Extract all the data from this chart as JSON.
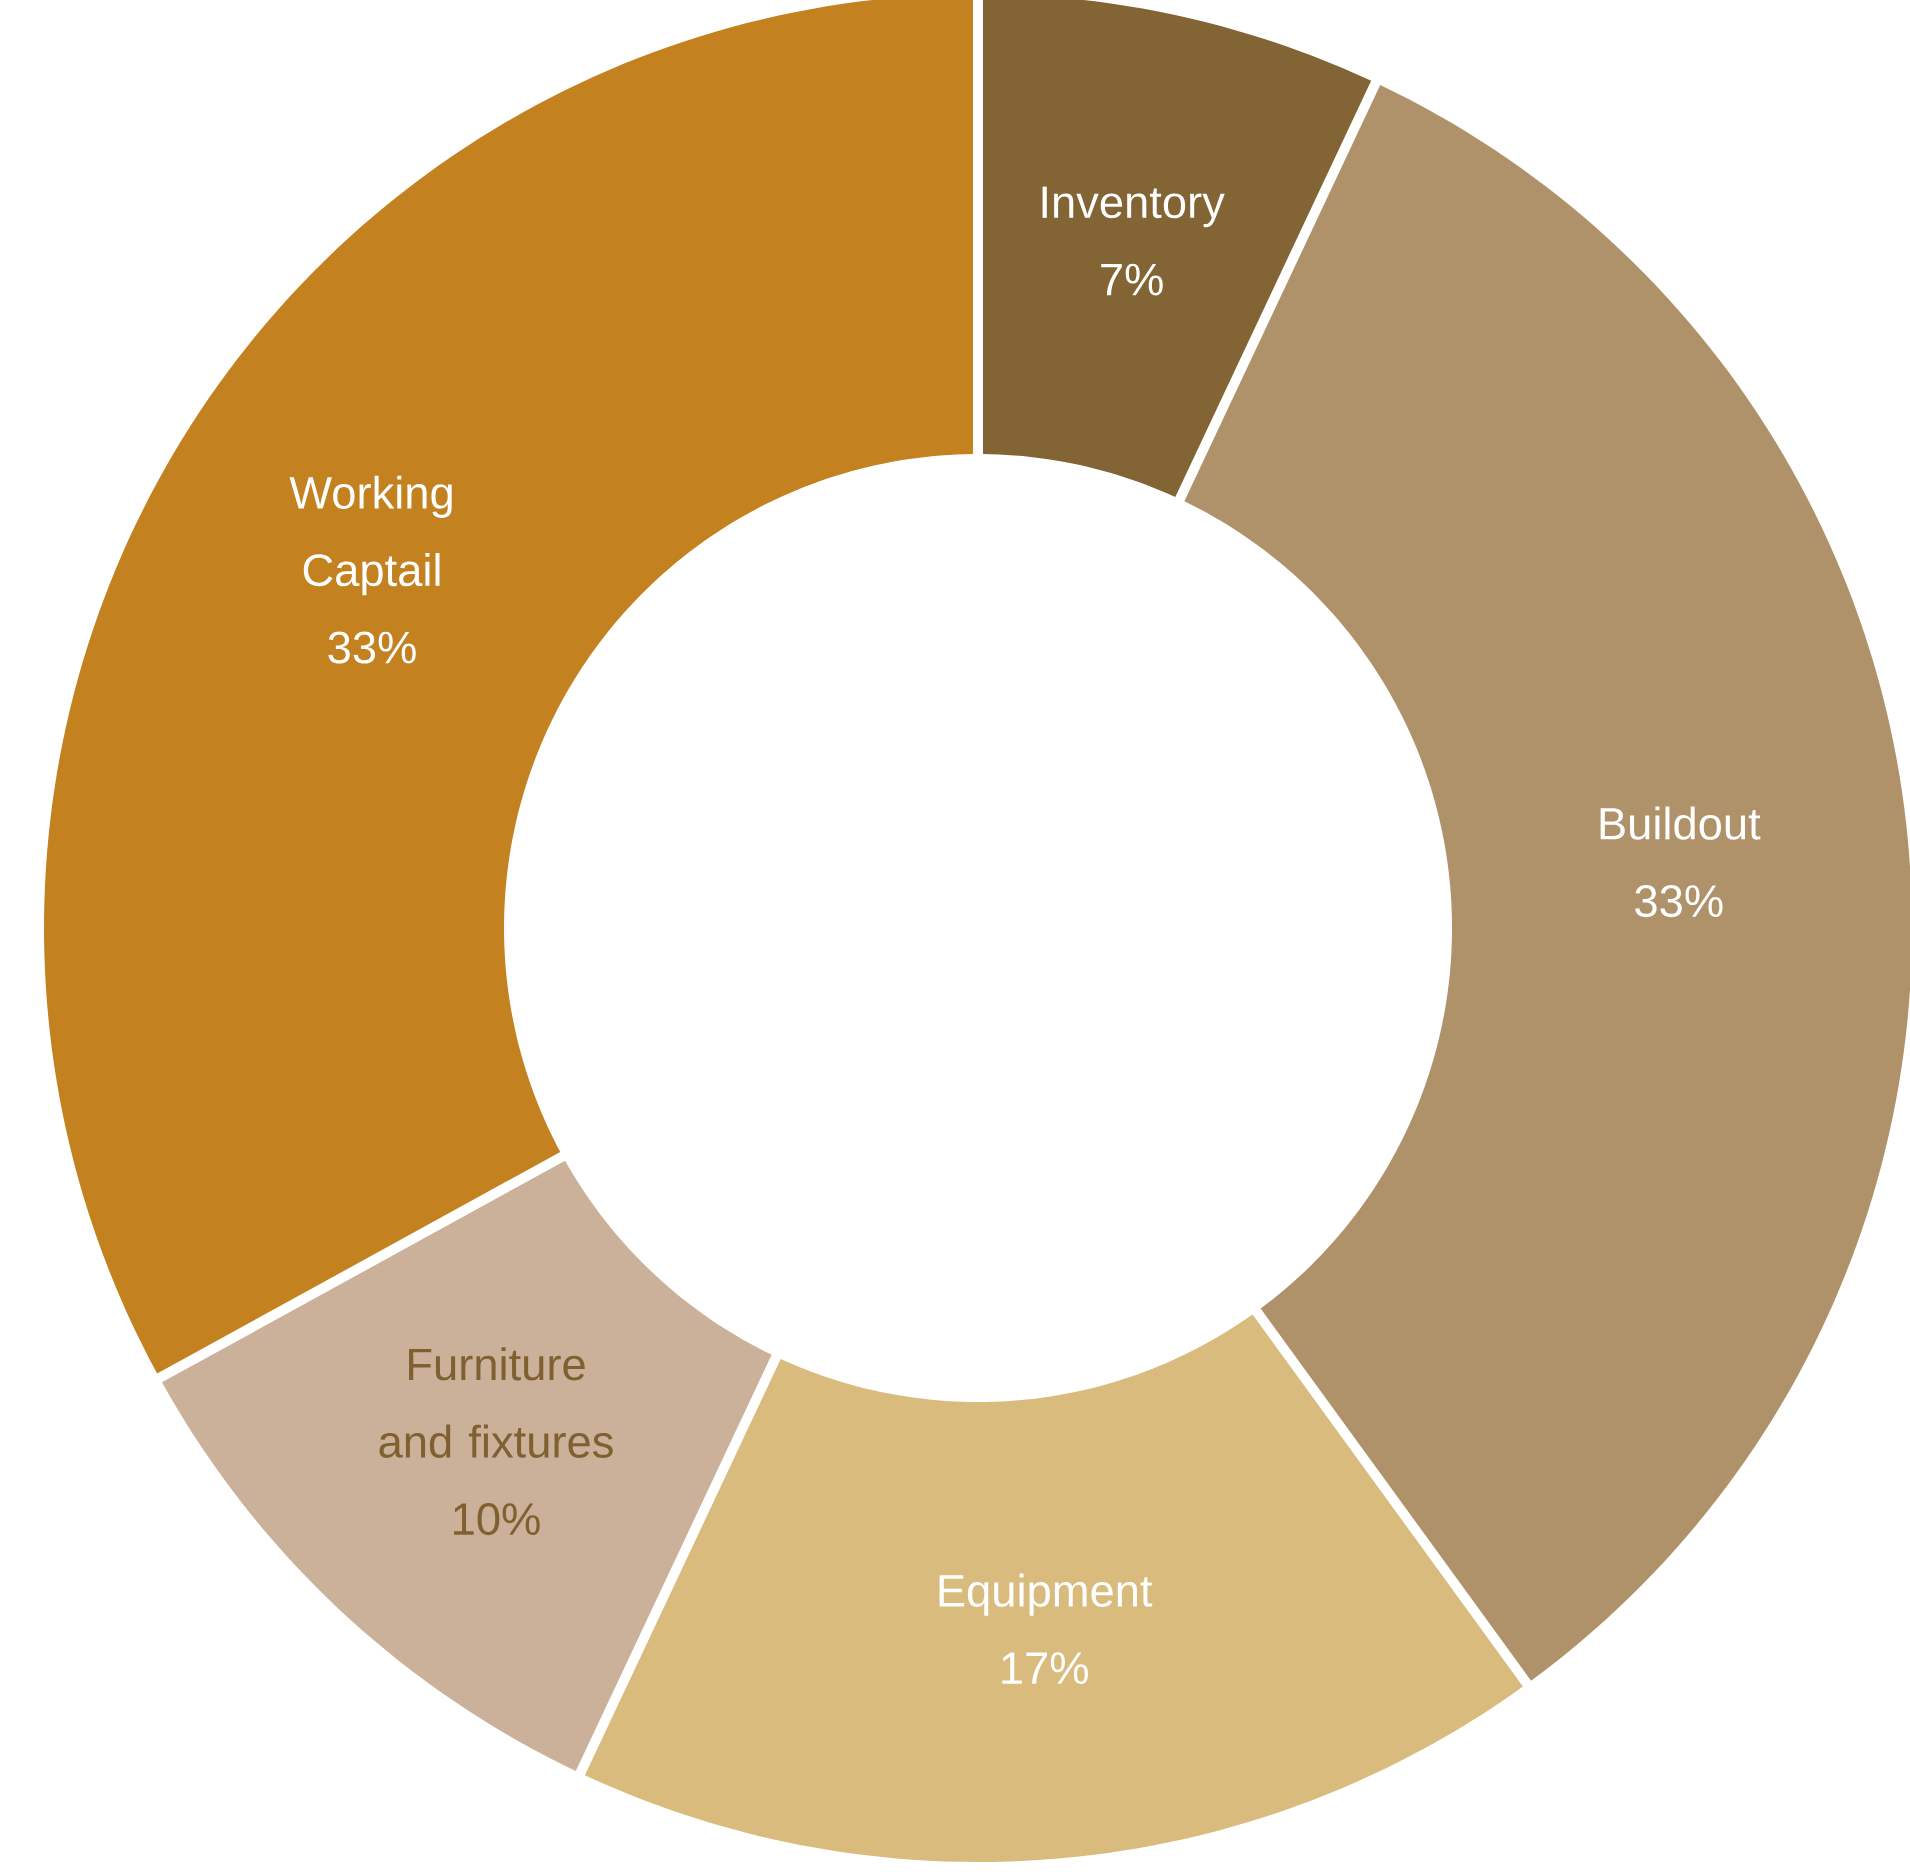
{
  "chart_data": {
    "type": "donut",
    "categories": [
      "Inventory",
      "Buildout",
      "Equipment",
      "Furniture and fixtures",
      "Working Captail"
    ],
    "values": [
      7,
      33,
      17,
      10,
      33
    ],
    "value_labels": [
      "7%",
      "33%",
      "17%",
      "10%",
      "33%"
    ],
    "colors": [
      "#836434",
      "#b0926a",
      "#dabb7e",
      "#cbb09a",
      "#c3821f"
    ]
  }
}
